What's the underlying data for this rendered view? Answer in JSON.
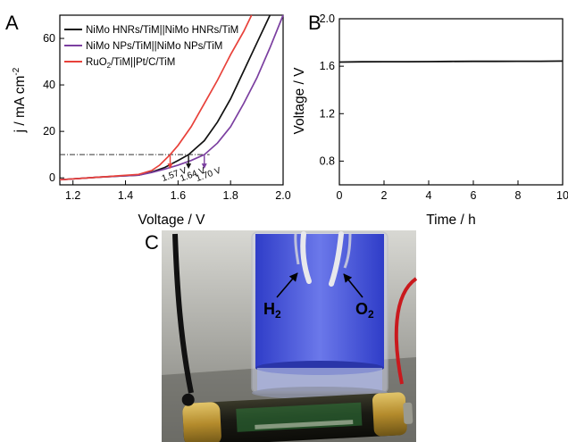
{
  "panels": {
    "a": "A",
    "b": "B",
    "c": "C"
  },
  "colors": {
    "black": "#111111",
    "purple": "#7b3fa0",
    "red": "#e8413a"
  },
  "chart_data": [
    {
      "type": "line",
      "xlabel": "Voltage / V",
      "ylabel": "j / mA cm",
      "ylabel_sup": "-2",
      "xlim": [
        1.15,
        2.0
      ],
      "ylim": [
        -3,
        70
      ],
      "xticks": [
        "1.2",
        "1.4",
        "1.6",
        "1.8",
        "2.0"
      ],
      "yticks": [
        "0",
        "20",
        "40",
        "60"
      ],
      "legend_position": "top-left",
      "series": [
        {
          "name": "NiMo HNRs/TiM||NiMo HNRs/TiM",
          "color": "#111111",
          "x": [
            1.15,
            1.3,
            1.45,
            1.5,
            1.55,
            1.6,
            1.64,
            1.7,
            1.75,
            1.8,
            1.85,
            1.9,
            1.95
          ],
          "y": [
            -0.8,
            0.3,
            1.2,
            2.5,
            4.5,
            7.5,
            10,
            16,
            24,
            34,
            46,
            58,
            70
          ]
        },
        {
          "name": "NiMo NPs/TiM||NiMo NPs/TiM",
          "color": "#7b3fa0",
          "x": [
            1.15,
            1.3,
            1.45,
            1.5,
            1.55,
            1.6,
            1.65,
            1.7,
            1.75,
            1.8,
            1.85,
            1.9,
            1.95,
            2.0
          ],
          "y": [
            -0.8,
            0.3,
            1.2,
            2.3,
            3.8,
            5.5,
            7.5,
            10,
            15,
            22,
            32,
            43,
            56,
            70
          ]
        },
        {
          "name": "RuO<sub>2</sub>/TiM||Pt/C/TiM",
          "legend": {
            "pre": "RuO",
            "sub": "2",
            "post": "/TiM||Pt/C/TiM"
          },
          "color": "#e8413a",
          "x": [
            1.15,
            1.3,
            1.45,
            1.5,
            1.53,
            1.57,
            1.6,
            1.65,
            1.7,
            1.75,
            1.8,
            1.85,
            1.88
          ],
          "y": [
            -0.8,
            0.3,
            1.5,
            3.2,
            5.5,
            10,
            14,
            22,
            32,
            42,
            53,
            63,
            70
          ]
        }
      ],
      "reference_line": {
        "y": 10,
        "style": "dash-dot"
      },
      "annotations": [
        {
          "text": "1.57 V",
          "x": 1.57,
          "color": "#e8413a"
        },
        {
          "text": "1.64 V",
          "x": 1.64,
          "color": "#111111"
        },
        {
          "text": "1.70 V",
          "x": 1.7,
          "color": "#7b3fa0"
        }
      ]
    },
    {
      "type": "line",
      "xlabel": "Time / h",
      "ylabel": "Voltage / V",
      "xlim": [
        0,
        10
      ],
      "ylim": [
        0.6,
        2.0
      ],
      "xticks": [
        "0",
        "2",
        "4",
        "6",
        "8",
        "10"
      ],
      "yticks": [
        "0.8",
        "1.2",
        "1.6",
        "2.0"
      ],
      "series": [
        {
          "color": "#111111",
          "x": [
            0,
            1,
            2,
            3,
            4,
            5,
            6,
            7,
            8,
            9,
            10
          ],
          "y": [
            1.635,
            1.637,
            1.638,
            1.638,
            1.639,
            1.64,
            1.641,
            1.641,
            1.642,
            1.642,
            1.643
          ]
        }
      ]
    }
  ],
  "photo": {
    "labels": {
      "h2": {
        "main": "H",
        "sub": "2"
      },
      "o2": {
        "main": "O",
        "sub": "2"
      }
    }
  }
}
